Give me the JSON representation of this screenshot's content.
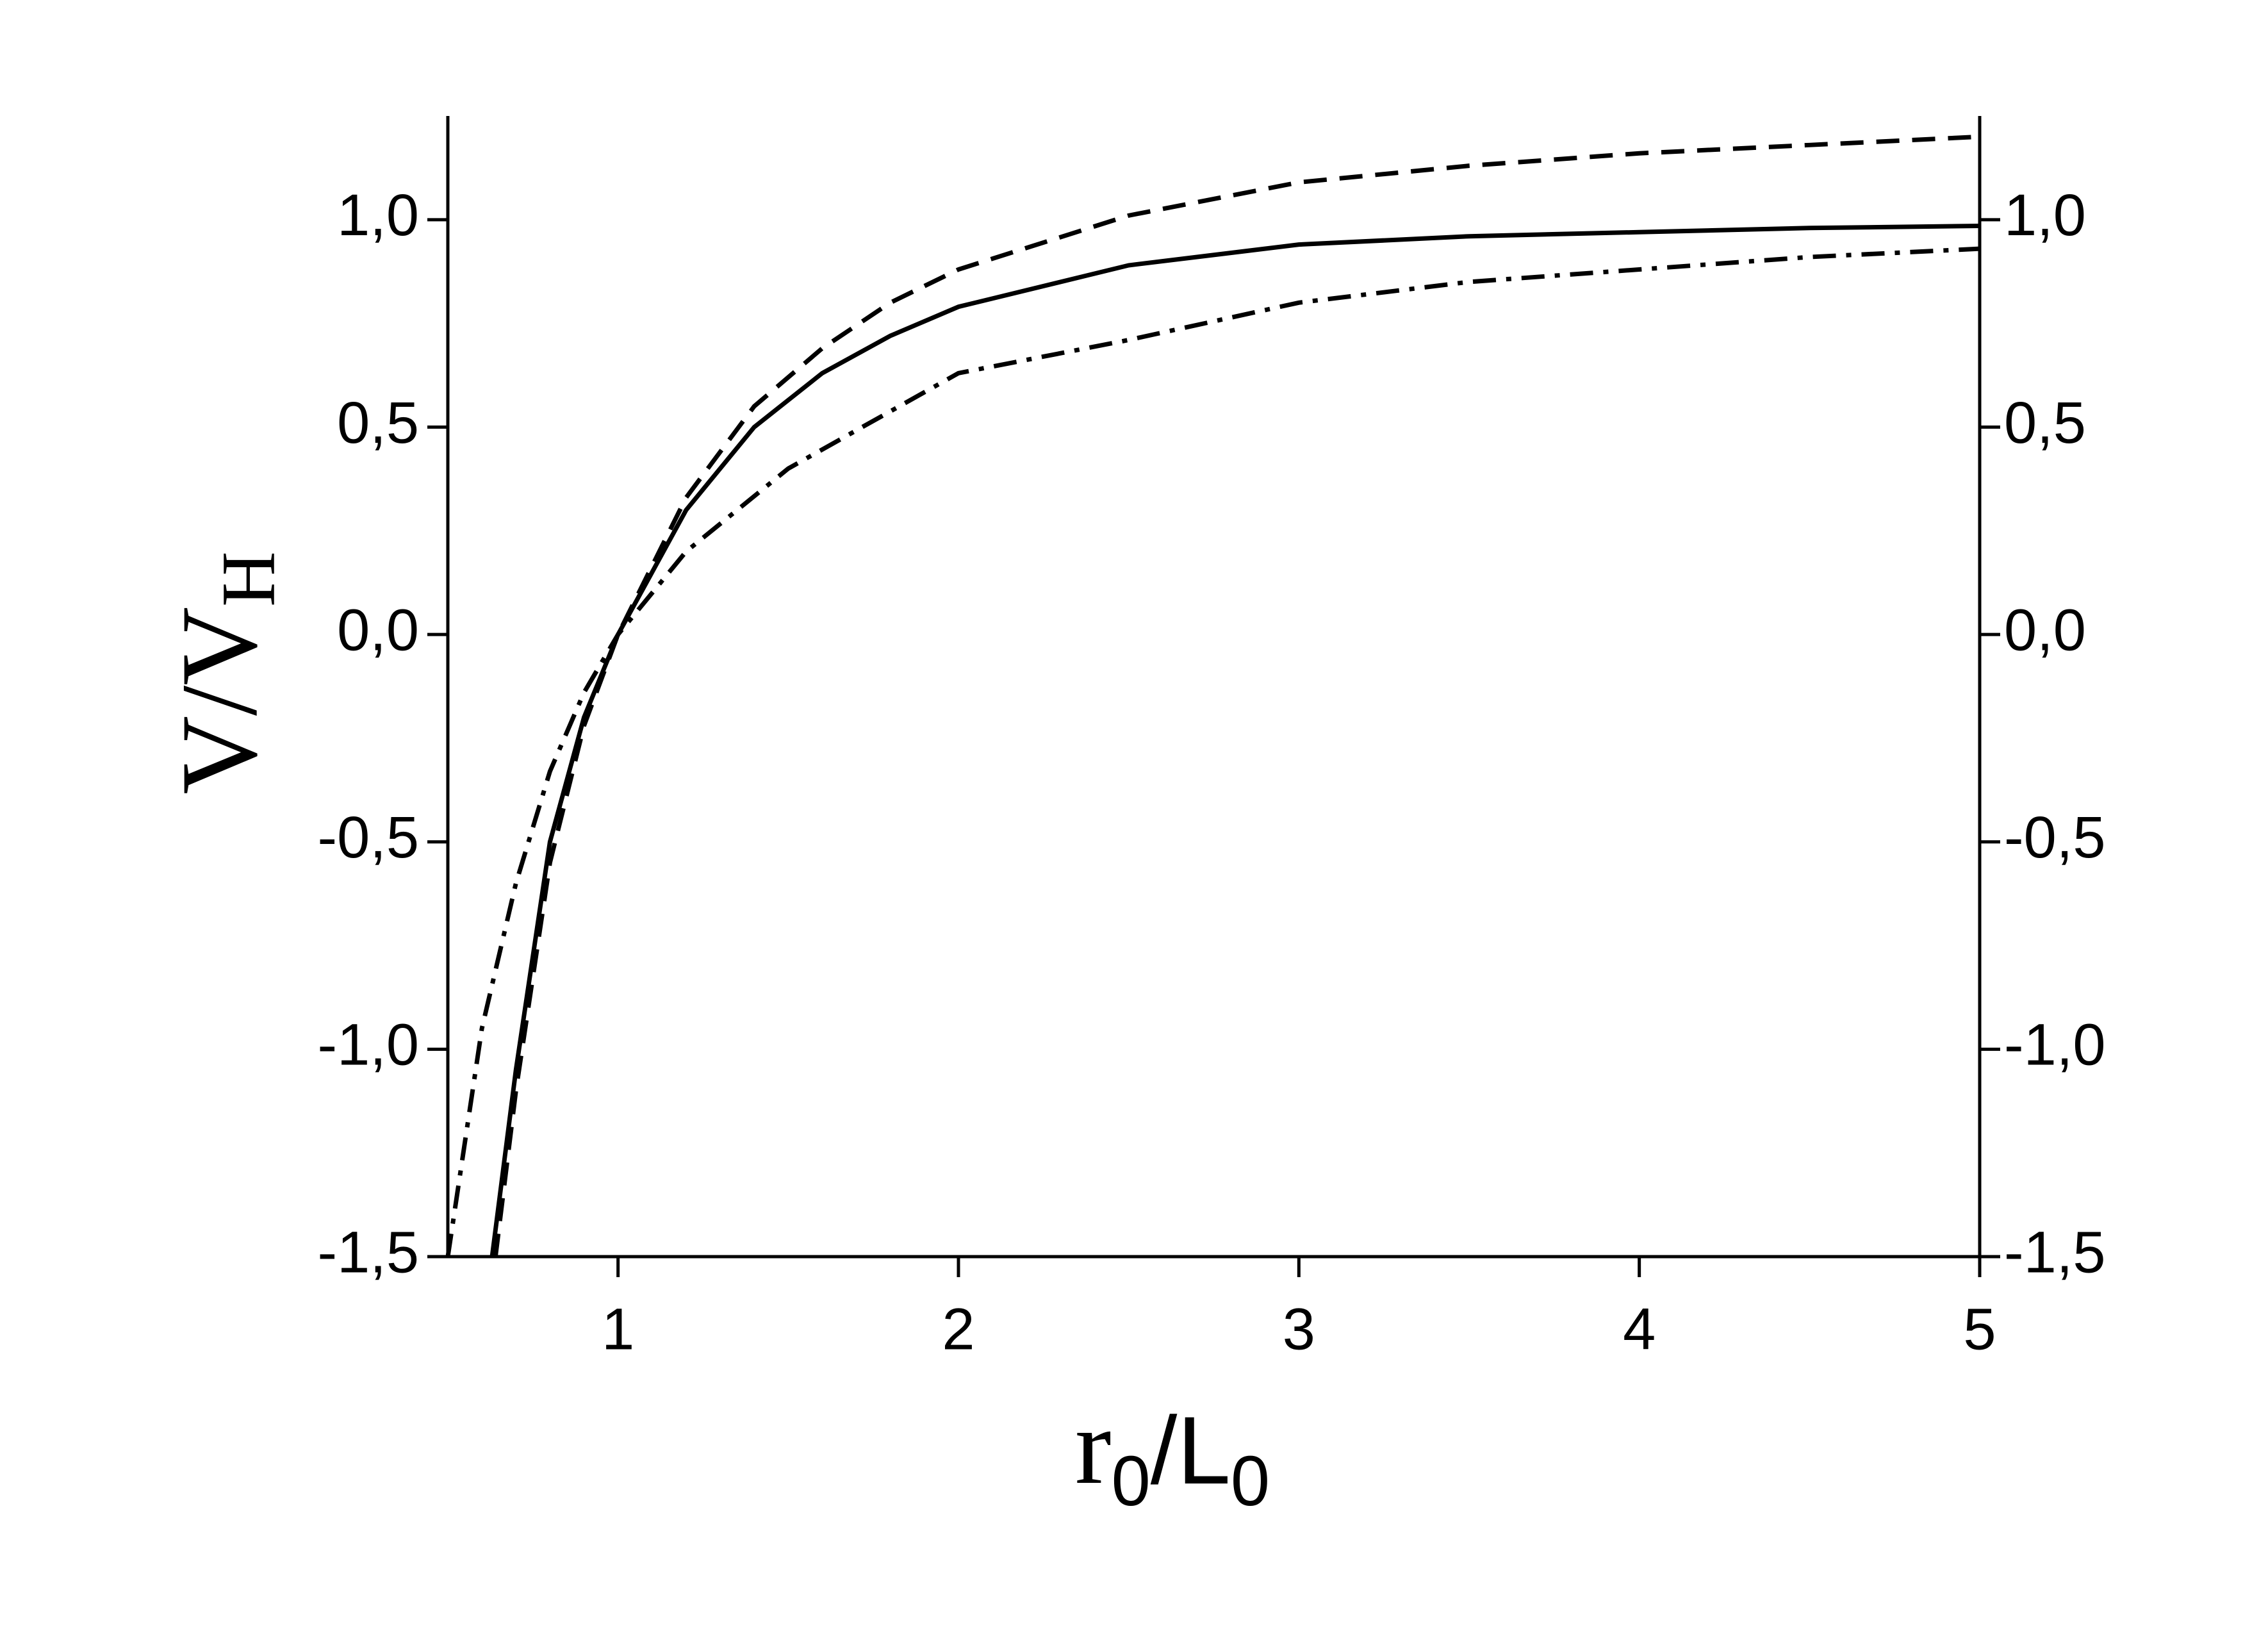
{
  "chart_data": {
    "type": "line",
    "x_label": [
      "r",
      "0",
      "/L",
      "0"
    ],
    "y_label": [
      "V/V",
      "H"
    ],
    "xlim": [
      0.5,
      5
    ],
    "ylim": [
      -1.5,
      1.25
    ],
    "xticks": [
      1,
      2,
      3,
      4,
      5
    ],
    "yticks": [
      {
        "value": -1.5,
        "label": "-1,5"
      },
      {
        "value": -1,
        "label": "-1,0"
      },
      {
        "value": -0.5,
        "label": "-0,5"
      },
      {
        "value": 0,
        "label": "0,0"
      },
      {
        "value": 0.5,
        "label": "0,5"
      },
      {
        "value": 1,
        "label": "1,0"
      }
    ],
    "right_axis_labels": true,
    "series": [
      {
        "color": "#000000",
        "dash": "solid",
        "x": [
          0.63,
          0.7,
          0.8,
          0.9,
          1.0,
          1.2,
          1.4,
          1.6,
          1.8,
          2.0,
          2.5,
          3.0,
          3.5,
          4.0,
          4.5,
          5.0
        ],
        "values": [
          -1.5,
          -1.05,
          -0.5,
          -0.2,
          0,
          0.3,
          0.5,
          0.63,
          0.72,
          0.79,
          0.89,
          0.94,
          0.96,
          0.97,
          0.98,
          0.985
        ]
      },
      {
        "color": "#000000",
        "dash": "dashed",
        "x": [
          0.64,
          0.7,
          0.8,
          0.9,
          1.0,
          1.2,
          1.4,
          1.6,
          1.8,
          2.0,
          2.5,
          3.0,
          3.5,
          4.0,
          4.5,
          5.0
        ],
        "values": [
          -1.5,
          -1.1,
          -0.55,
          -0.22,
          0,
          0.33,
          0.55,
          0.69,
          0.8,
          0.88,
          1.01,
          1.09,
          1.13,
          1.16,
          1.18,
          1.2
        ]
      },
      {
        "color": "#000000",
        "dash": "dashdot",
        "x": [
          0.5,
          0.6,
          0.7,
          0.8,
          0.9,
          1.0,
          1.2,
          1.5,
          2.0,
          2.5,
          3.0,
          3.5,
          4.0,
          4.5,
          5.0
        ],
        "values": [
          -1.5,
          -0.95,
          -0.6,
          -0.33,
          -0.14,
          0,
          0.2,
          0.4,
          0.63,
          0.71,
          0.8,
          0.85,
          0.88,
          0.91,
          0.93
        ]
      }
    ]
  }
}
